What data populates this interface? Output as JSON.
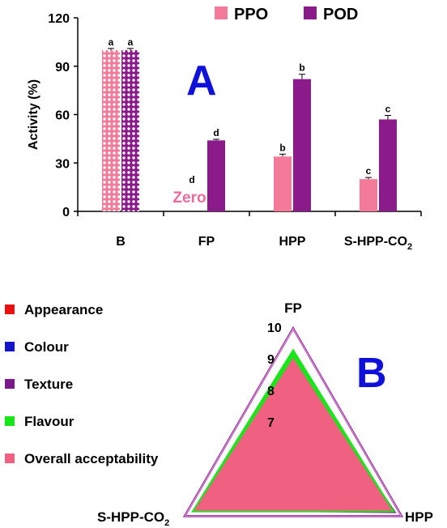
{
  "chart_data": [
    {
      "type": "bar",
      "panel_label": "A",
      "ylabel": "Activity (%)",
      "ylim": [
        0,
        120
      ],
      "yticks": [
        0,
        30,
        60,
        90,
        120
      ],
      "categories": [
        "B",
        "FP",
        "HPP",
        "S-HPP-CO"
      ],
      "category_subscript": [
        "",
        "",
        "",
        "2"
      ],
      "series": [
        {
          "name": "PPO",
          "color": "#f47a9a",
          "values": [
            100,
            0,
            34,
            20
          ],
          "errors": [
            1,
            0,
            1.5,
            1
          ],
          "letters": [
            "a",
            "d",
            "b",
            "c"
          ]
        },
        {
          "name": "POD",
          "color": "#8b1a8b",
          "values": [
            100,
            44,
            82,
            57
          ],
          "errors": [
            1,
            0.7,
            3,
            2.5
          ],
          "letters": [
            "a",
            "d",
            "b",
            "c"
          ]
        }
      ],
      "annotations": [
        {
          "text": "Zero"
        }
      ],
      "legend_position": "top"
    },
    {
      "type": "radar",
      "panel_label": "B",
      "axes": [
        "FP",
        "HPP",
        "S-HPP-CO"
      ],
      "axis_subscript": [
        "",
        "",
        "2"
      ],
      "scale_ticks": [
        7,
        8,
        9,
        10
      ],
      "rmin": 6,
      "rmax": 10,
      "series": [
        {
          "name": "Appearance",
          "color": "#e81010",
          "values": [
            8.9,
            9.6,
            9.6
          ]
        },
        {
          "name": "Colour",
          "color": "#1515c8",
          "values": [
            8.8,
            9.7,
            9.6
          ]
        },
        {
          "name": "Texture",
          "color": "#7a1a8a",
          "values": [
            8.9,
            9.75,
            9.6
          ]
        },
        {
          "name": "Flavour",
          "color": "#19e619",
          "values": [
            9.3,
            9.7,
            9.7
          ]
        },
        {
          "name": "Overall acceptability",
          "color": "#f06080",
          "values": [
            9.0,
            9.6,
            9.6
          ]
        }
      ],
      "legend_position": "left"
    }
  ]
}
